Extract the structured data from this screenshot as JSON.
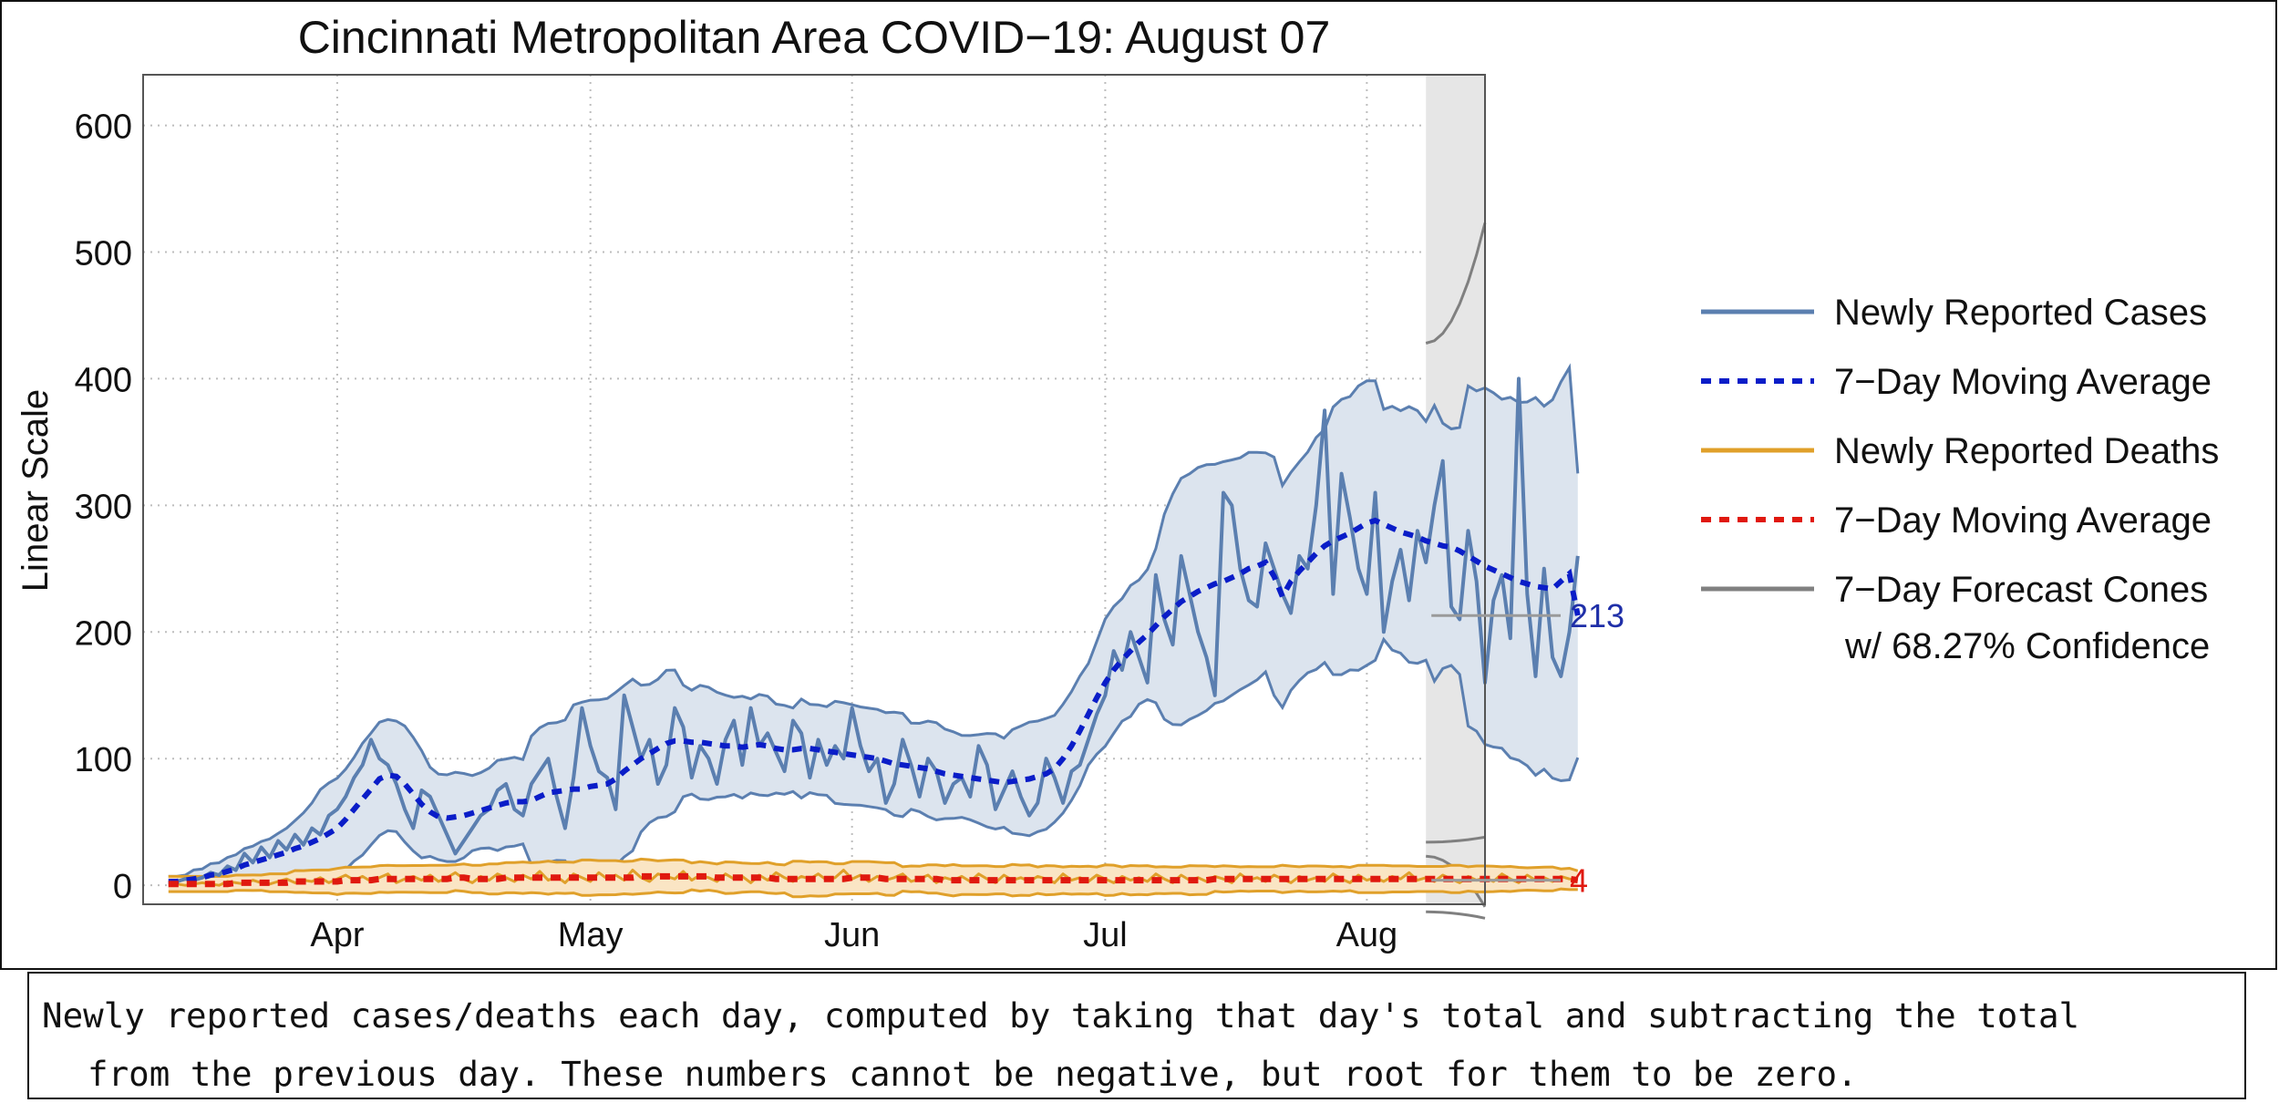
{
  "chart_data": {
    "type": "line",
    "title": "Cincinnati Metropolitan Area COVID−19: August 07",
    "ylabel": "Linear Scale",
    "xlabel": "",
    "ylim": [
      -15,
      640
    ],
    "xlim": [
      "2020-03-09",
      "2020-08-15"
    ],
    "yticks": [
      0,
      100,
      200,
      300,
      400,
      500,
      600
    ],
    "xticks": [
      {
        "date": "2020-04-01",
        "label": "Apr"
      },
      {
        "date": "2020-05-01",
        "label": "May"
      },
      {
        "date": "2020-06-01",
        "label": "Jun"
      },
      {
        "date": "2020-07-01",
        "label": "Jul"
      },
      {
        "date": "2020-08-01",
        "label": "Aug"
      }
    ],
    "grid": true,
    "legend_position": "right",
    "legend": [
      {
        "label": "Newly Reported Cases",
        "style": "solid",
        "color": "#5b7fb0"
      },
      {
        "label": "7−Day Moving Average",
        "style": "dashed",
        "color": "#0a1dc8"
      },
      {
        "label": "Newly Reported Deaths",
        "style": "solid",
        "color": "#e0a02a"
      },
      {
        "label": "7−Day Moving Average",
        "style": "dashed",
        "color": "#e0190f"
      },
      {
        "label": "7−Day Forecast Cones",
        "label2": "w/ 68.27% Confidence",
        "style": "solid",
        "color": "#808080"
      }
    ],
    "annotations": [
      {
        "label": "213",
        "value": 213,
        "color": "#1f2fa8"
      },
      {
        "label": "4",
        "value": 4,
        "color": "#e0190f"
      }
    ],
    "series": [
      {
        "name": "Newly Reported Cases",
        "start": "2020-03-12",
        "values": [
          2,
          3,
          5,
          4,
          6,
          10,
          8,
          15,
          12,
          25,
          18,
          30,
          22,
          35,
          28,
          40,
          32,
          45,
          40,
          55,
          60,
          70,
          85,
          95,
          115,
          100,
          95,
          80,
          60,
          45,
          75,
          70,
          55,
          40,
          25,
          35,
          45,
          55,
          60,
          75,
          80,
          60,
          55,
          80,
          90,
          100,
          70,
          45,
          85,
          140,
          110,
          90,
          85,
          60,
          150,
          125,
          100,
          115,
          80,
          95,
          140,
          125,
          85,
          110,
          100,
          80,
          115,
          130,
          95,
          140,
          110,
          120,
          105,
          90,
          130,
          120,
          85,
          115,
          95,
          110,
          100,
          140,
          110,
          90,
          100,
          65,
          80,
          115,
          95,
          70,
          100,
          90,
          65,
          80,
          85,
          70,
          110,
          95,
          60,
          75,
          90,
          70,
          55,
          65,
          100,
          85,
          65,
          90,
          95,
          115,
          135,
          150,
          185,
          170,
          200,
          180,
          160,
          245,
          210,
          190,
          260,
          230,
          200,
          180,
          150,
          310,
          300,
          250,
          225,
          220,
          270,
          250,
          230,
          215,
          260,
          250,
          300,
          375,
          230,
          325,
          290,
          250,
          230,
          310,
          200,
          240,
          265,
          225,
          280,
          255,
          300,
          335,
          220,
          210,
          280,
          240,
          160,
          225,
          245,
          195,
          400,
          230,
          165,
          250,
          180,
          165,
          200,
          260
        ]
      },
      {
        "name": "7−Day Moving Average",
        "start": "2020-03-12",
        "values": [
          3,
          3,
          4,
          5,
          6,
          8,
          9,
          11,
          13,
          16,
          18,
          20,
          22,
          24,
          26,
          29,
          31,
          34,
          37,
          41,
          45,
          52,
          60,
          68,
          76,
          84,
          87,
          86,
          80,
          72,
          64,
          58,
          54,
          53,
          54,
          55,
          57,
          59,
          61,
          63,
          65,
          66,
          66,
          67,
          70,
          73,
          74,
          75,
          76,
          76,
          78,
          79,
          80,
          84,
          90,
          95,
          100,
          104,
          108,
          112,
          114,
          114,
          113,
          113,
          112,
          111,
          110,
          110,
          109,
          110,
          111,
          110,
          108,
          107,
          107,
          108,
          108,
          107,
          106,
          105,
          104,
          103,
          102,
          101,
          100,
          98,
          96,
          95,
          94,
          93,
          92,
          90,
          88,
          87,
          86,
          85,
          84,
          83,
          82,
          81,
          82,
          83,
          84,
          86,
          88,
          92,
          100,
          110,
          122,
          135,
          148,
          160,
          170,
          178,
          185,
          192,
          198,
          205,
          212,
          218,
          224,
          228,
          232,
          235,
          238,
          240,
          243,
          246,
          250,
          252,
          255,
          244,
          228,
          240,
          248,
          255,
          262,
          268,
          272,
          275,
          278,
          282,
          286,
          288,
          285,
          282,
          279,
          277,
          275,
          272,
          270,
          268,
          267,
          264,
          260,
          256,
          252,
          249,
          246,
          243,
          240,
          238,
          236,
          235,
          234,
          240,
          246,
          213
        ]
      },
      {
        "name": "Newly Reported Deaths",
        "start": "2020-03-12",
        "values": [
          0,
          1,
          0,
          1,
          2,
          1,
          0,
          3,
          2,
          1,
          4,
          2,
          1,
          3,
          5,
          2,
          4,
          3,
          6,
          2,
          5,
          8,
          4,
          7,
          3,
          6,
          9,
          2,
          5,
          7,
          4,
          8,
          3,
          6,
          10,
          5,
          2,
          7,
          4,
          9,
          6,
          3,
          8,
          5,
          11,
          4,
          7,
          2,
          9,
          6,
          3,
          10,
          5,
          8,
          4,
          12,
          6,
          3,
          9,
          7,
          5,
          11,
          4,
          8,
          6,
          3,
          9,
          5,
          7,
          2,
          8,
          4,
          10,
          6,
          3,
          7,
          5,
          9,
          4,
          6,
          12,
          5,
          8,
          3,
          7,
          4,
          6,
          9,
          3,
          5,
          8,
          2,
          6,
          4,
          7,
          3,
          9,
          5,
          2,
          8,
          4,
          6,
          3,
          7,
          5,
          2,
          9,
          4,
          6,
          3,
          8,
          5,
          2,
          7,
          4,
          6,
          3,
          9,
          5,
          2,
          8,
          4,
          6,
          3,
          7,
          5,
          2,
          9,
          4,
          6,
          3,
          8,
          5,
          2,
          7,
          4,
          6,
          3,
          9,
          5,
          2,
          8,
          4,
          6,
          3,
          7,
          5,
          10,
          4,
          6,
          3,
          8,
          5,
          2,
          7,
          4,
          6,
          3,
          9,
          5,
          2,
          8,
          4,
          6,
          3,
          7,
          5,
          4
        ]
      },
      {
        "name": "7−Day Moving Average",
        "start": "2020-03-12",
        "values": [
          1,
          1,
          1,
          1,
          1,
          1,
          1,
          1,
          2,
          2,
          2,
          2,
          2,
          2,
          2,
          3,
          3,
          3,
          3,
          3,
          3,
          4,
          4,
          4,
          4,
          5,
          5,
          5,
          5,
          5,
          5,
          5,
          5,
          5,
          6,
          6,
          5,
          5,
          5,
          5,
          6,
          6,
          6,
          6,
          6,
          6,
          6,
          6,
          6,
          6,
          6,
          6,
          6,
          6,
          6,
          6,
          7,
          7,
          7,
          7,
          7,
          7,
          7,
          7,
          7,
          6,
          6,
          6,
          6,
          6,
          6,
          6,
          5,
          5,
          5,
          5,
          5,
          5,
          5,
          5,
          5,
          6,
          6,
          6,
          6,
          5,
          5,
          5,
          5,
          5,
          5,
          5,
          4,
          4,
          4,
          4,
          4,
          4,
          4,
          4,
          4,
          4,
          4,
          4,
          4,
          4,
          4,
          4,
          4,
          4,
          4,
          4,
          4,
          4,
          4,
          4,
          4,
          4,
          4,
          4,
          4,
          4,
          4,
          4,
          5,
          5,
          5,
          5,
          5,
          5,
          5,
          5,
          5,
          5,
          5,
          5,
          5,
          5,
          5,
          5,
          5,
          5,
          5,
          5,
          5,
          5,
          5,
          5,
          5,
          5,
          5,
          5,
          5,
          5,
          5,
          5,
          5,
          5,
          5,
          5,
          5,
          5,
          5,
          5,
          5,
          5,
          5,
          4
        ]
      }
    ]
  },
  "caption": {
    "line1": "Newly reported cases/deaths each day, computed by taking that day's total and subtracting the total",
    "line2": "from the previous day. These numbers cannot be negative, but root for them to be zero."
  },
  "colors": {
    "cases": "#5b7fb0",
    "cases_band": "#dce4ee",
    "cases_ma": "#0a1dc8",
    "deaths": "#e0a02a",
    "deaths_band": "#fae5c4",
    "deaths_ma": "#e0190f",
    "forecast": "#808080",
    "forecast_band": "#e6e6e6"
  }
}
